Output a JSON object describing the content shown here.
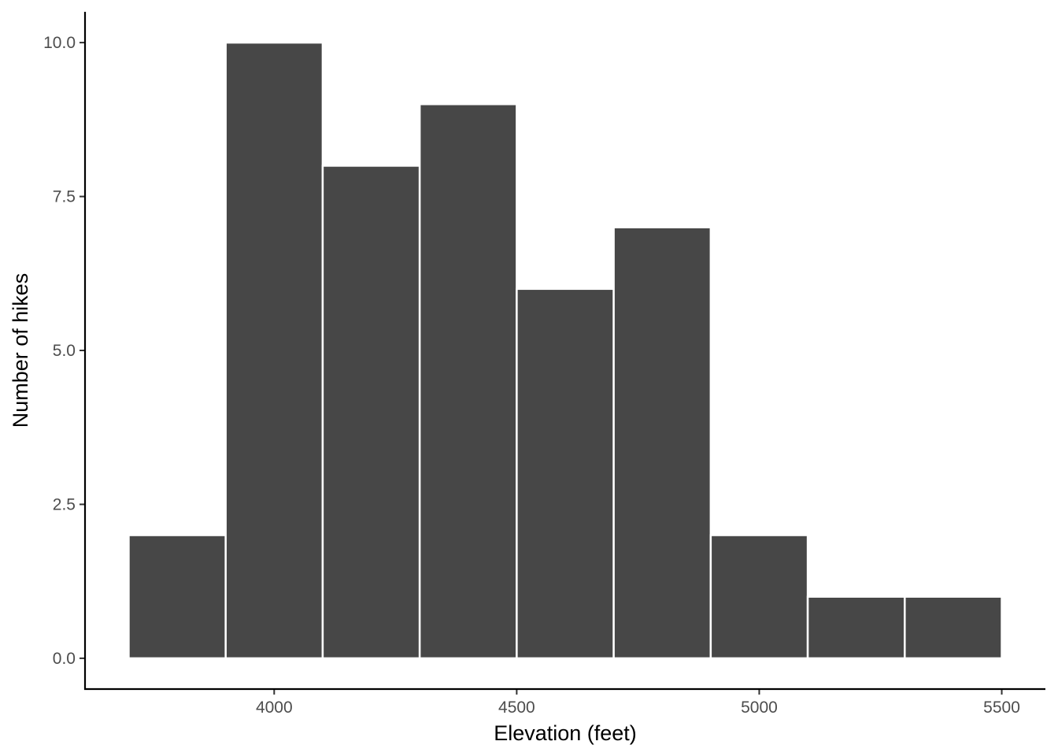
{
  "chart_data": {
    "type": "bar",
    "subtype": "histogram",
    "bins": [
      {
        "x0": 3700,
        "x1": 3900,
        "count": 2
      },
      {
        "x0": 3900,
        "x1": 4100,
        "count": 10
      },
      {
        "x0": 4100,
        "x1": 4300,
        "count": 8
      },
      {
        "x0": 4300,
        "x1": 4500,
        "count": 9
      },
      {
        "x0": 4500,
        "x1": 4700,
        "count": 6
      },
      {
        "x0": 4700,
        "x1": 4900,
        "count": 7
      },
      {
        "x0": 4900,
        "x1": 5100,
        "count": 2
      },
      {
        "x0": 5100,
        "x1": 5300,
        "count": 1
      },
      {
        "x0": 5300,
        "x1": 5500,
        "count": 1
      }
    ],
    "xlabel": "Elevation (feet)",
    "ylabel": "Number of hikes",
    "xlim": [
      3610,
      5590
    ],
    "ylim": [
      -0.5,
      10.5
    ],
    "x_ticks": [
      4000,
      4500,
      5000,
      5500
    ],
    "x_tick_labels": [
      "4000",
      "4500",
      "5000",
      "5500"
    ],
    "y_ticks": [
      0,
      2.5,
      5,
      7.5,
      10
    ],
    "y_tick_labels": [
      "0.0",
      "2.5",
      "5.0",
      "7.5",
      "10.0"
    ],
    "grid": false,
    "legend": "none",
    "colors": {
      "bar_fill": "#474747",
      "bar_outline": "#ffffff",
      "axis": "#000000",
      "tick_label": "#4d4d4d"
    }
  }
}
